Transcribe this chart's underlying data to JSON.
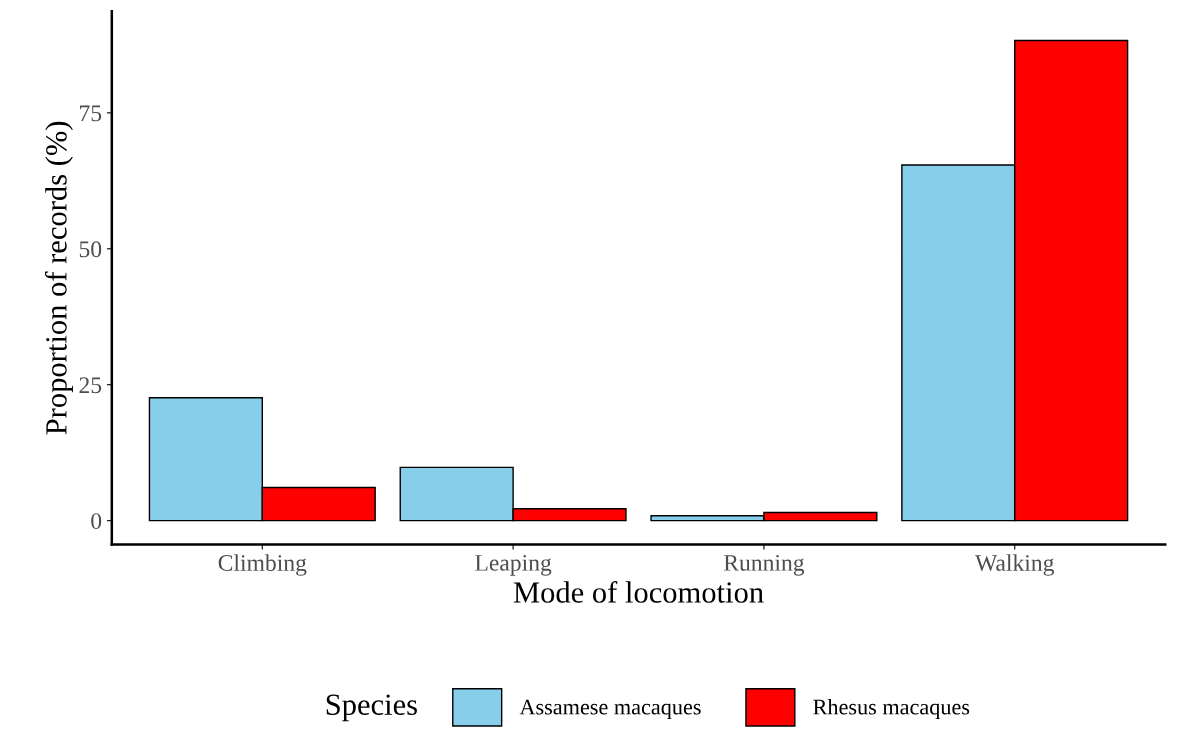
{
  "chart_data": {
    "type": "bar",
    "xlabel": "Mode of locomotion",
    "ylabel": "Proportion of records (%)",
    "legend_title": "Species",
    "categories": [
      "Climbing",
      "Leaping",
      "Running",
      "Walking"
    ],
    "series": [
      {
        "name": "Assamese macaques",
        "color": "#87ceeb",
        "values": [
          22.6,
          9.8,
          0.9,
          65.4
        ]
      },
      {
        "name": "Rhesus macaques",
        "color": "#ff0000",
        "values": [
          6.1,
          2.2,
          1.5,
          88.3
        ]
      }
    ],
    "ylim": [
      -4.4,
      93.7
    ],
    "yticks": [
      0,
      25,
      50,
      75
    ],
    "grid": false,
    "legend": "bottom"
  }
}
